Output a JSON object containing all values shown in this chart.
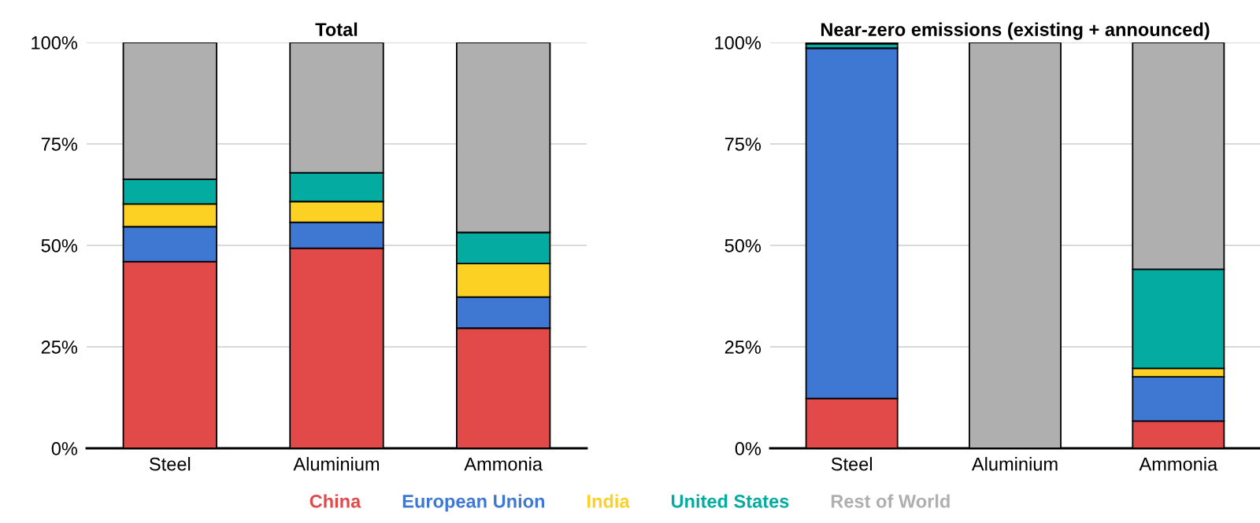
{
  "chart_data": [
    {
      "type": "bar",
      "title": "Total",
      "stacked": true,
      "categories": [
        "Steel",
        "Aluminium",
        "Ammonia"
      ],
      "ylim": [
        0,
        100
      ],
      "yticks": [
        {
          "value": 0,
          "label": "0%"
        },
        {
          "value": 25,
          "label": "25%"
        },
        {
          "value": 50,
          "label": "50%"
        },
        {
          "value": 75,
          "label": "75%"
        },
        {
          "value": 100,
          "label": "100%"
        }
      ],
      "grid": "y",
      "legend": "bottom",
      "series": [
        {
          "name": "China",
          "color": "#e24a4a",
          "values": [
            46.0,
            49.3,
            29.6
          ]
        },
        {
          "name": "European Union",
          "color": "#3e78d3",
          "values": [
            8.6,
            6.4,
            7.7
          ]
        },
        {
          "name": "India",
          "color": "#fcd123",
          "values": [
            5.6,
            5.1,
            8.2
          ]
        },
        {
          "name": "United States",
          "color": "#03aba0",
          "values": [
            6.1,
            7.1,
            7.7
          ]
        },
        {
          "name": "Rest of World",
          "color": "#afafaf",
          "values": [
            33.7,
            32.1,
            46.8
          ]
        }
      ]
    },
    {
      "type": "bar",
      "title": "Near-zero emissions (existing + announced)",
      "stacked": true,
      "categories": [
        "Steel",
        "Aluminium",
        "Ammonia"
      ],
      "ylim": [
        0,
        100
      ],
      "yticks": [
        {
          "value": 0,
          "label": "0%"
        },
        {
          "value": 25,
          "label": "25%"
        },
        {
          "value": 50,
          "label": "50%"
        },
        {
          "value": 75,
          "label": "75%"
        },
        {
          "value": 100,
          "label": "100%"
        }
      ],
      "grid": "y",
      "series": [
        {
          "color": "#e24a4a",
          "values": [
            12.3,
            0,
            6.7
          ]
        },
        {
          "color": "#3e78d3",
          "values": [
            86.3,
            0,
            10.9
          ]
        },
        {
          "color": "#fcd123",
          "values": [
            0,
            0,
            2.1
          ]
        },
        {
          "color": "#03aba0",
          "values": [
            1.1,
            0,
            24.4
          ]
        },
        {
          "color": "#afafaf",
          "values": [
            0.3,
            100,
            55.9
          ]
        }
      ]
    }
  ]
}
